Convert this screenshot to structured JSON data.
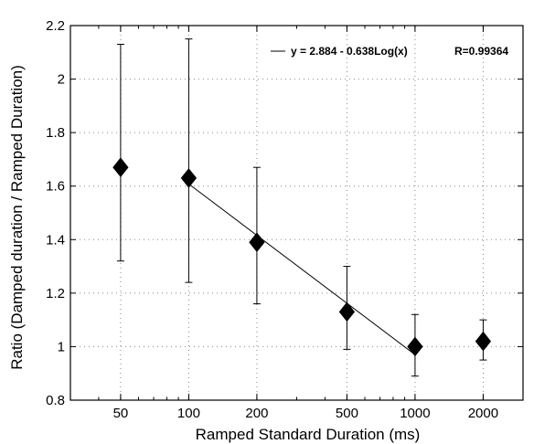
{
  "chart_data": {
    "type": "scatter",
    "title": "",
    "xlabel": "Ramped Standard Duration (ms)",
    "ylabel": "Ratio (Damped duration / Ramped Duration)",
    "x_scale": "log",
    "xlim": [
      30,
      3000
    ],
    "ylim": [
      0.8,
      2.2
    ],
    "x_ticks": [
      50,
      100,
      200,
      500,
      1000,
      2000
    ],
    "y_ticks": [
      0.8,
      1,
      1.2,
      1.4,
      1.6,
      1.8,
      2,
      2.2
    ],
    "x_tick_labels": [
      "50",
      "100",
      "200",
      "500",
      "1000",
      "2000"
    ],
    "y_tick_labels": [
      "0.8",
      "1",
      "1.2",
      "1.4",
      "1.6",
      "1.8",
      "2",
      "2.2"
    ],
    "grid": "dotted",
    "marker": "diamond",
    "color": "#000000",
    "series": [
      {
        "x": [
          50,
          100,
          200,
          500,
          1000,
          2000
        ],
        "y": [
          1.67,
          1.63,
          1.39,
          1.13,
          1.0,
          1.02
        ],
        "error_low": [
          1.32,
          1.24,
          1.16,
          0.99,
          0.89,
          0.95
        ],
        "error_high": [
          2.13,
          2.15,
          1.67,
          1.3,
          1.12,
          1.1
        ]
      }
    ],
    "fit_line": {
      "x_range": [
        100,
        1000
      ],
      "equation": "y = 2.884 - 0.638Log(x)",
      "r_label": "R=0.99364"
    },
    "legend_position": "top-right"
  }
}
